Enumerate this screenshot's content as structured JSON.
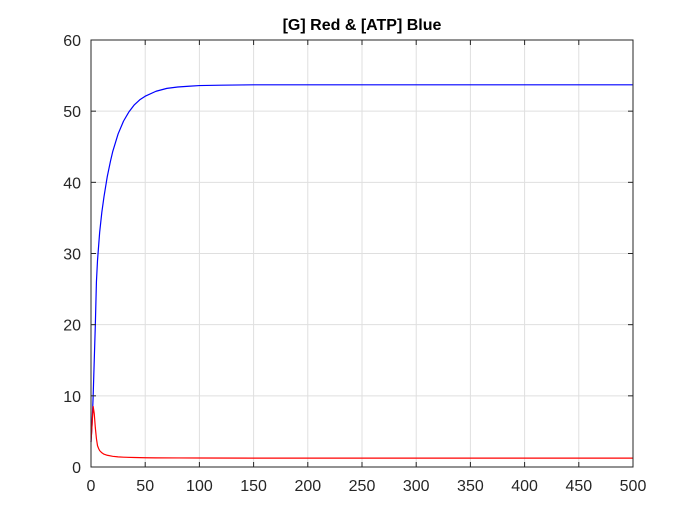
{
  "chart_data": {
    "type": "line",
    "title": "[G] Red & [ATP] Blue",
    "xlabel": "",
    "ylabel": "",
    "xlim": [
      0,
      500
    ],
    "ylim": [
      0,
      60
    ],
    "xticks": [
      0,
      50,
      100,
      150,
      200,
      250,
      300,
      350,
      400,
      450,
      500
    ],
    "yticks": [
      0,
      10,
      20,
      30,
      40,
      50,
      60
    ],
    "grid": true,
    "series": [
      {
        "color": "#0000ff",
        "x": [
          0,
          1,
          2,
          3,
          4,
          5,
          6,
          8,
          10,
          12,
          15,
          18,
          20,
          25,
          30,
          35,
          40,
          45,
          50,
          60,
          70,
          80,
          90,
          100,
          120,
          150,
          200,
          250,
          300,
          400,
          500
        ],
        "y": [
          3.5,
          6,
          10,
          15,
          20,
          26,
          29,
          33,
          35.8,
          38,
          40.8,
          43,
          44.3,
          46.8,
          48.6,
          49.9,
          50.9,
          51.6,
          52.1,
          52.8,
          53.2,
          53.4,
          53.5,
          53.6,
          53.65,
          53.7,
          53.7,
          53.7,
          53.7,
          53.7,
          53.7
        ]
      },
      {
        "color": "#ff0000",
        "x": [
          0,
          1,
          2,
          3,
          4,
          5,
          6,
          7,
          8,
          10,
          12,
          15,
          20,
          25,
          30,
          40,
          50,
          60,
          80,
          100,
          150,
          200,
          300,
          400,
          500
        ],
        "y": [
          3.5,
          6,
          8.5,
          7.5,
          5.5,
          4,
          3,
          2.6,
          2.3,
          2.0,
          1.8,
          1.65,
          1.5,
          1.42,
          1.38,
          1.33,
          1.3,
          1.28,
          1.27,
          1.26,
          1.25,
          1.25,
          1.25,
          1.25,
          1.25
        ]
      }
    ]
  }
}
